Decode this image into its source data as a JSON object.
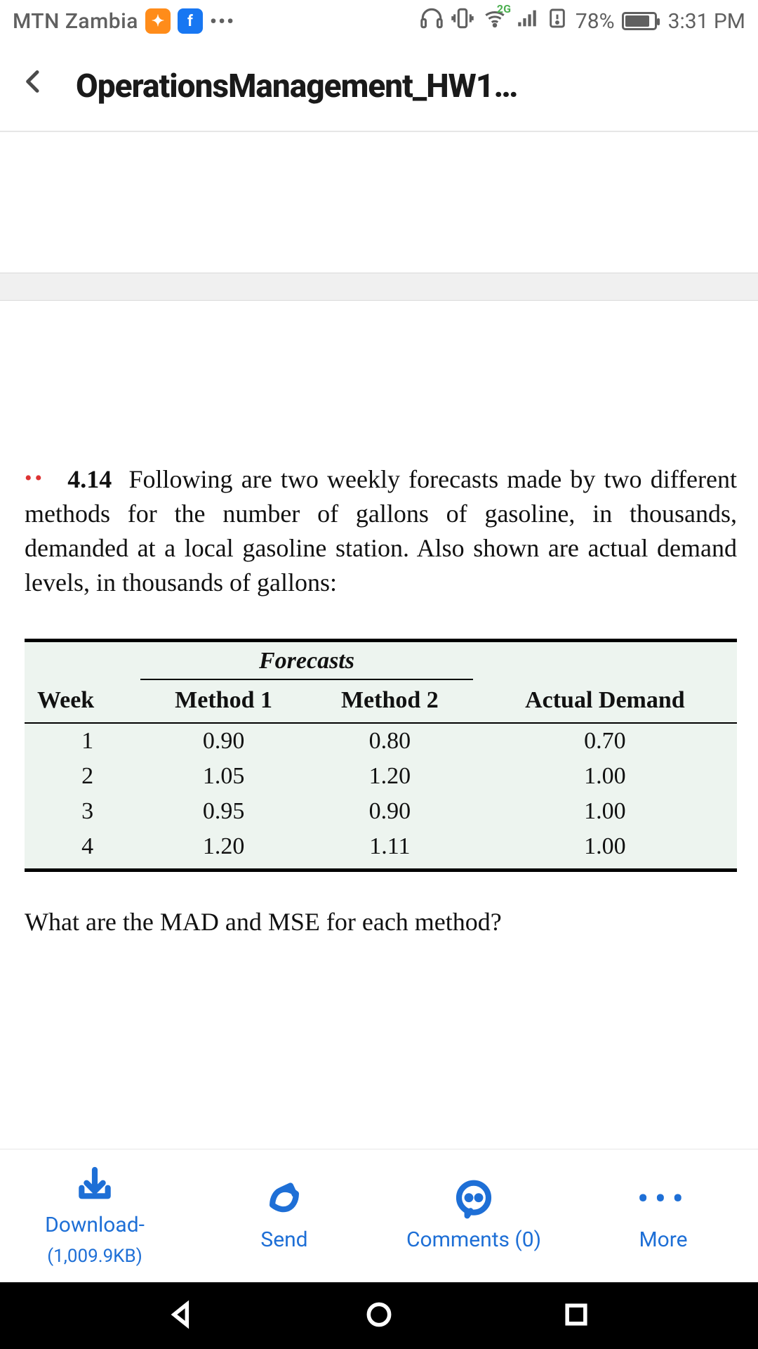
{
  "status": {
    "carrier": "MTN Zambia",
    "network_badge": "2G",
    "battery_pct_text": "78%",
    "battery_pct_value": 78,
    "time": "3:31 PM"
  },
  "titlebar": {
    "title": "OperationsManagement_HW1…"
  },
  "document": {
    "problem_dots": "••",
    "problem_number": "4.14",
    "problem_text_after_number": "Following are two weekly forecasts made by two different methods for the number of gallons of gasoline, in thousands, demanded at a local gasoline station. Also shown are actual demand levels, in thousands of gallons:",
    "table": {
      "group_label": "Forecasts",
      "headers": {
        "week": "Week",
        "m1": "Method 1",
        "m2": "Method 2",
        "actual": "Actual Demand"
      },
      "rows": [
        {
          "week": "1",
          "m1": "0.90",
          "m2": "0.80",
          "actual": "0.70"
        },
        {
          "week": "2",
          "m1": "1.05",
          "m2": "1.20",
          "actual": "1.00"
        },
        {
          "week": "3",
          "m1": "0.95",
          "m2": "0.90",
          "actual": "1.00"
        },
        {
          "week": "4",
          "m1": "1.20",
          "m2": "1.11",
          "actual": "1.00"
        }
      ],
      "bg_color": "#edf4ef",
      "rule_color": "#000000",
      "font_family": "Times New Roman"
    },
    "question_text": "What are the MAD and MSE for each method?"
  },
  "bottombar": {
    "download_label": "Download-",
    "download_sub": "(1,009.9KB)",
    "send_label": "Send",
    "comments_label": "Comments (0)",
    "more_label": "More",
    "accent_color": "#1e6fd6"
  }
}
